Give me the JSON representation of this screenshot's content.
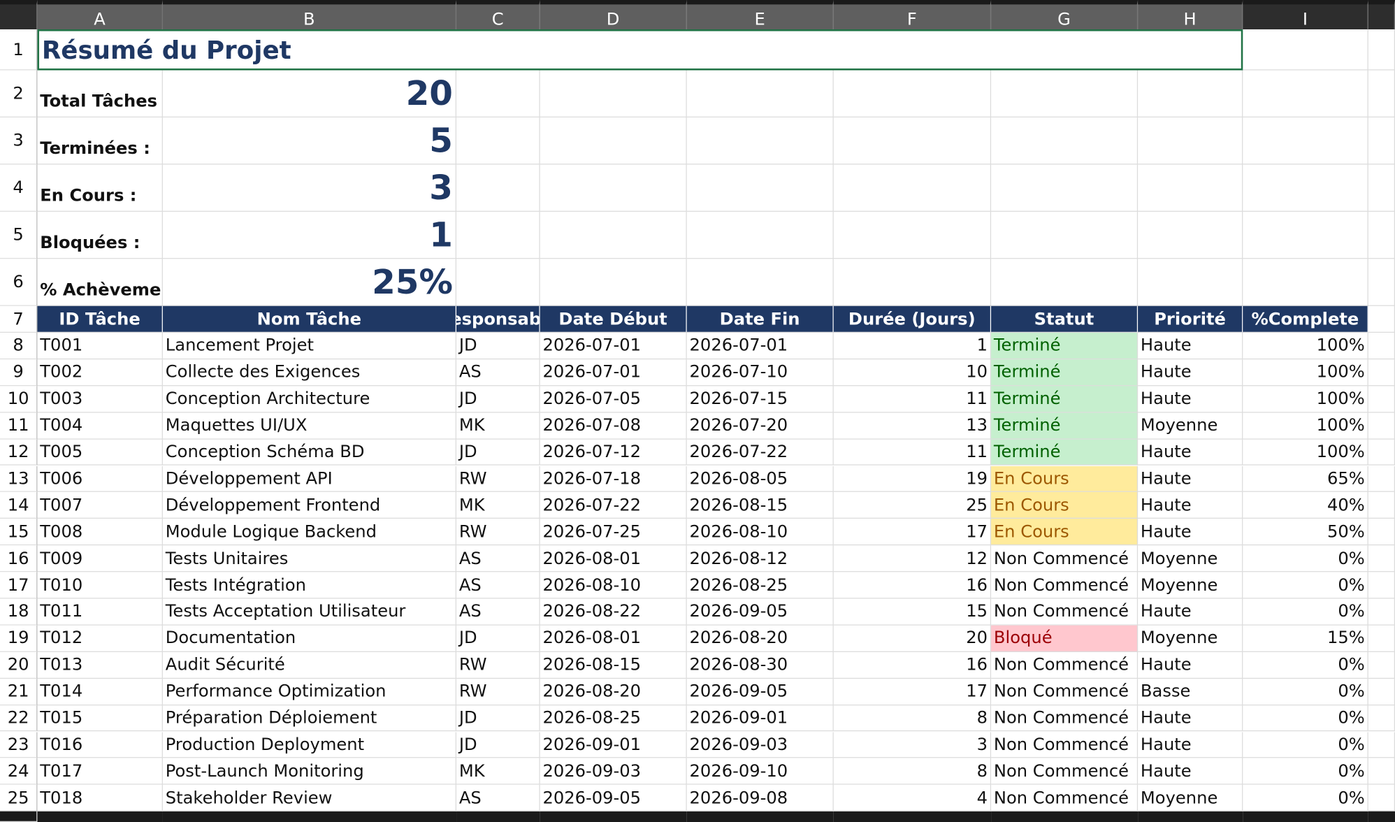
{
  "columns": [
    "A",
    "B",
    "C",
    "D",
    "E",
    "F",
    "G",
    "H",
    "I"
  ],
  "row_numbers": [
    1,
    2,
    3,
    4,
    5,
    6,
    7,
    8,
    9,
    10,
    11,
    12,
    13,
    14,
    15,
    16,
    17,
    18,
    19,
    20,
    21,
    22,
    23,
    24,
    25
  ],
  "summary": {
    "title": "Résumé du Projet",
    "items": [
      {
        "label": "Total Tâches :",
        "value": 20
      },
      {
        "label": "Terminées :",
        "value": 5
      },
      {
        "label": "En Cours :",
        "value": 3
      },
      {
        "label": "Bloquées :",
        "value": 1
      },
      {
        "label": "% Achèvement",
        "value": "25%"
      }
    ]
  },
  "table": {
    "headers": [
      "ID Tâche",
      "Nom Tâche",
      "Responsable",
      "Date Début",
      "Date Fin",
      "Durée (Jours)",
      "Statut",
      "Priorité",
      "%Complete"
    ],
    "rows": [
      [
        "T001",
        "Lancement Projet",
        "JD",
        "2026-07-01",
        "2026-07-01",
        1,
        "Terminé",
        "Haute",
        "100%"
      ],
      [
        "T002",
        "Collecte des Exigences",
        "AS",
        "2026-07-01",
        "2026-07-10",
        10,
        "Terminé",
        "Haute",
        "100%"
      ],
      [
        "T003",
        "Conception Architecture",
        "JD",
        "2026-07-05",
        "2026-07-15",
        11,
        "Terminé",
        "Haute",
        "100%"
      ],
      [
        "T004",
        "Maquettes UI/UX",
        "MK",
        "2026-07-08",
        "2026-07-20",
        13,
        "Terminé",
        "Moyenne",
        "100%"
      ],
      [
        "T005",
        "Conception Schéma BD",
        "JD",
        "2026-07-12",
        "2026-07-22",
        11,
        "Terminé",
        "Haute",
        "100%"
      ],
      [
        "T006",
        "Développement API",
        "RW",
        "2026-07-18",
        "2026-08-05",
        19,
        "En Cours",
        "Haute",
        "65%"
      ],
      [
        "T007",
        "Développement Frontend",
        "MK",
        "2026-07-22",
        "2026-08-15",
        25,
        "En Cours",
        "Haute",
        "40%"
      ],
      [
        "T008",
        "Module Logique Backend",
        "RW",
        "2026-07-25",
        "2026-08-10",
        17,
        "En Cours",
        "Haute",
        "50%"
      ],
      [
        "T009",
        "Tests Unitaires",
        "AS",
        "2026-08-01",
        "2026-08-12",
        12,
        "Non Commencé",
        "Moyenne",
        "0%"
      ],
      [
        "T010",
        "Tests Intégration",
        "AS",
        "2026-08-10",
        "2026-08-25",
        16,
        "Non Commencé",
        "Moyenne",
        "0%"
      ],
      [
        "T011",
        "Tests Acceptation Utilisateur",
        "AS",
        "2026-08-22",
        "2026-09-05",
        15,
        "Non Commencé",
        "Haute",
        "0%"
      ],
      [
        "T012",
        "Documentation",
        "JD",
        "2026-08-01",
        "2026-08-20",
        20,
        "Bloqué",
        "Moyenne",
        "15%"
      ],
      [
        "T013",
        "Audit Sécurité",
        "RW",
        "2026-08-15",
        "2026-08-30",
        16,
        "Non Commencé",
        "Haute",
        "0%"
      ],
      [
        "T014",
        "Performance Optimization",
        "RW",
        "2026-08-20",
        "2026-09-05",
        17,
        "Non Commencé",
        "Basse",
        "0%"
      ],
      [
        "T015",
        "Préparation Déploiement",
        "JD",
        "2026-08-25",
        "2026-09-01",
        8,
        "Non Commencé",
        "Haute",
        "0%"
      ],
      [
        "T016",
        "Production Deployment",
        "JD",
        "2026-09-01",
        "2026-09-03",
        3,
        "Non Commencé",
        "Haute",
        "0%"
      ],
      [
        "T017",
        "Post-Launch Monitoring",
        "MK",
        "2026-09-03",
        "2026-09-10",
        8,
        "Non Commencé",
        "Haute",
        "0%"
      ],
      [
        "T018",
        "Stakeholder Review",
        "AS",
        "2026-09-05",
        "2026-09-08",
        4,
        "Non Commencé",
        "Moyenne",
        "0%"
      ]
    ]
  },
  "status_colors": {
    "Terminé": {
      "bg": "#c6efce",
      "fg": "#006100"
    },
    "En Cours": {
      "bg": "#ffeb9c",
      "fg": "#9c5700"
    },
    "Bloqué": {
      "bg": "#ffc7ce",
      "fg": "#9c0006"
    }
  }
}
